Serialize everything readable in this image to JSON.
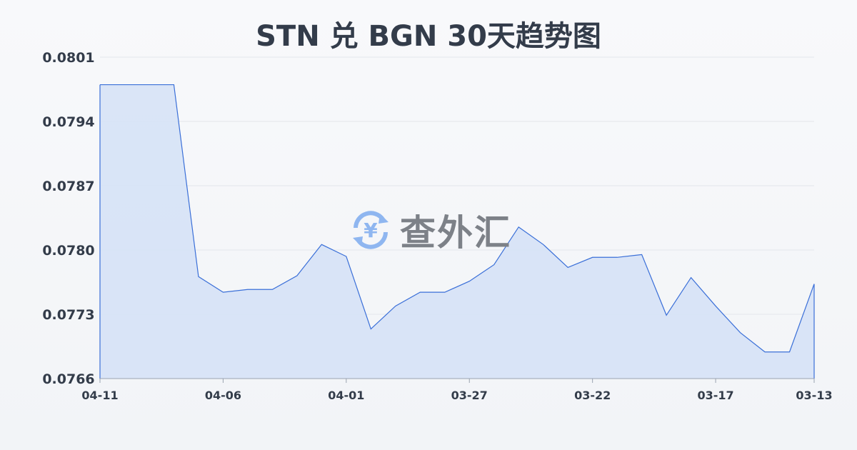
{
  "chart_data": {
    "type": "area",
    "title": "STN 兑 BGN 30天趋势图",
    "xlabel": "",
    "ylabel": "",
    "x": [
      "04-11",
      "04-10",
      "04-09",
      "04-08",
      "04-07",
      "04-06",
      "04-05",
      "04-04",
      "04-03",
      "04-02",
      "04-01",
      "03-31",
      "03-30",
      "03-29",
      "03-28",
      "03-27",
      "03-26",
      "03-25",
      "03-24",
      "03-23",
      "03-22",
      "03-21",
      "03-20",
      "03-19",
      "03-18",
      "03-17",
      "03-16",
      "03-15",
      "03-14",
      "03-13"
    ],
    "x_tick_labels": [
      "04-11",
      "04-06",
      "04-01",
      "03-27",
      "03-22",
      "03-17",
      "03-13"
    ],
    "y_tick_labels": [
      "0.0801",
      "0.0794",
      "0.0787",
      "0.0780",
      "0.0773",
      "0.0766"
    ],
    "ylim": [
      0.0766,
      0.0801
    ],
    "grid": true,
    "series": [
      {
        "values": [
          0.0798,
          0.0798,
          0.0798,
          0.0798,
          0.07771,
          0.07754,
          0.07757,
          0.07757,
          0.07772,
          0.07806,
          0.07793,
          0.07714,
          0.07739,
          0.07754,
          0.07754,
          0.07766,
          0.07784,
          0.07825,
          0.07806,
          0.07781,
          0.07792,
          0.07792,
          0.07795,
          0.07729,
          0.0777,
          0.07739,
          0.0771,
          0.07689,
          0.07689,
          0.07763
        ]
      }
    ],
    "colors": {
      "line": "#3a6fd8",
      "fill": "#d6e2f6",
      "grid": "#e3e6eb"
    }
  },
  "watermark": {
    "text": "查外汇",
    "icon": "yen-exchange-icon",
    "icon_color": "#8fb6f0"
  }
}
